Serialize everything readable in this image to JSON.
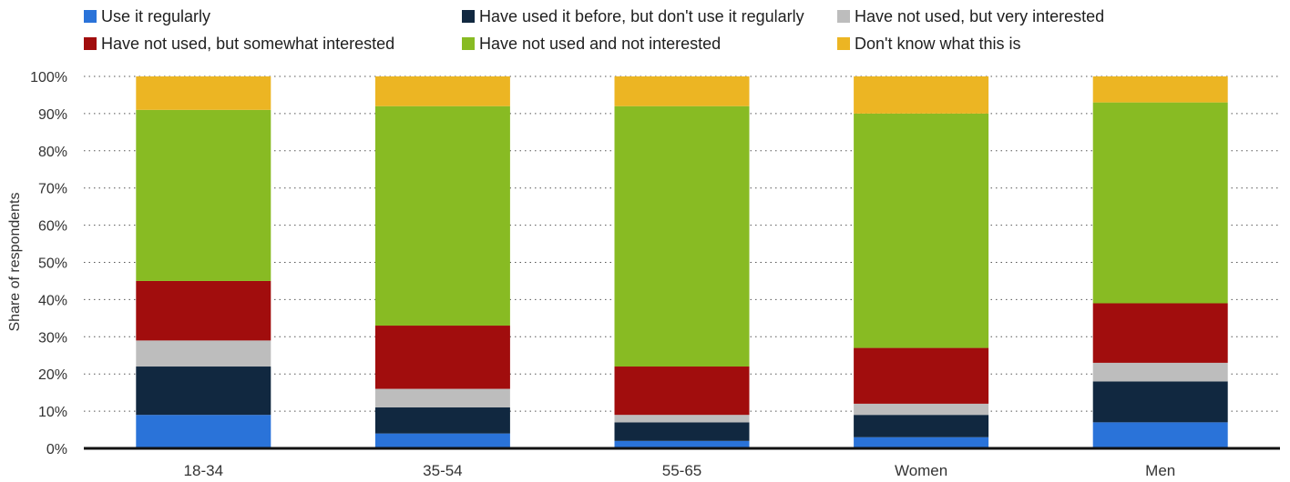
{
  "chart_data": {
    "type": "bar",
    "stacked": true,
    "title": "",
    "xlabel": "",
    "ylabel": "Share of respondents",
    "ylim": [
      0,
      100
    ],
    "yticks": [
      "0%",
      "10%",
      "20%",
      "30%",
      "40%",
      "50%",
      "60%",
      "70%",
      "80%",
      "90%",
      "100%"
    ],
    "grid": "dotted-horizontal",
    "legend_position": "top",
    "categories": [
      "18-34",
      "35-54",
      "55-65",
      "Women",
      "Men"
    ],
    "series": [
      {
        "name": "Use it regularly",
        "color": "#2a73d9",
        "values": [
          9,
          4,
          2,
          3,
          7
        ]
      },
      {
        "name": "Have used it before, but don't use it regularly",
        "color": "#112840",
        "values": [
          13,
          7,
          5,
          6,
          11
        ]
      },
      {
        "name": "Have not used, but very interested",
        "color": "#bdbdbd",
        "values": [
          7,
          5,
          2,
          3,
          5
        ]
      },
      {
        "name": "Have not used, but somewhat interested",
        "color": "#a10d0d",
        "values": [
          16,
          17,
          13,
          15,
          16
        ]
      },
      {
        "name": "Have not used and not interested",
        "color": "#88bb23",
        "values": [
          46,
          59,
          70,
          63,
          54
        ]
      },
      {
        "name": "Don't know what this is",
        "color": "#ecb523",
        "values": [
          9,
          8,
          8,
          10,
          7
        ]
      }
    ]
  }
}
